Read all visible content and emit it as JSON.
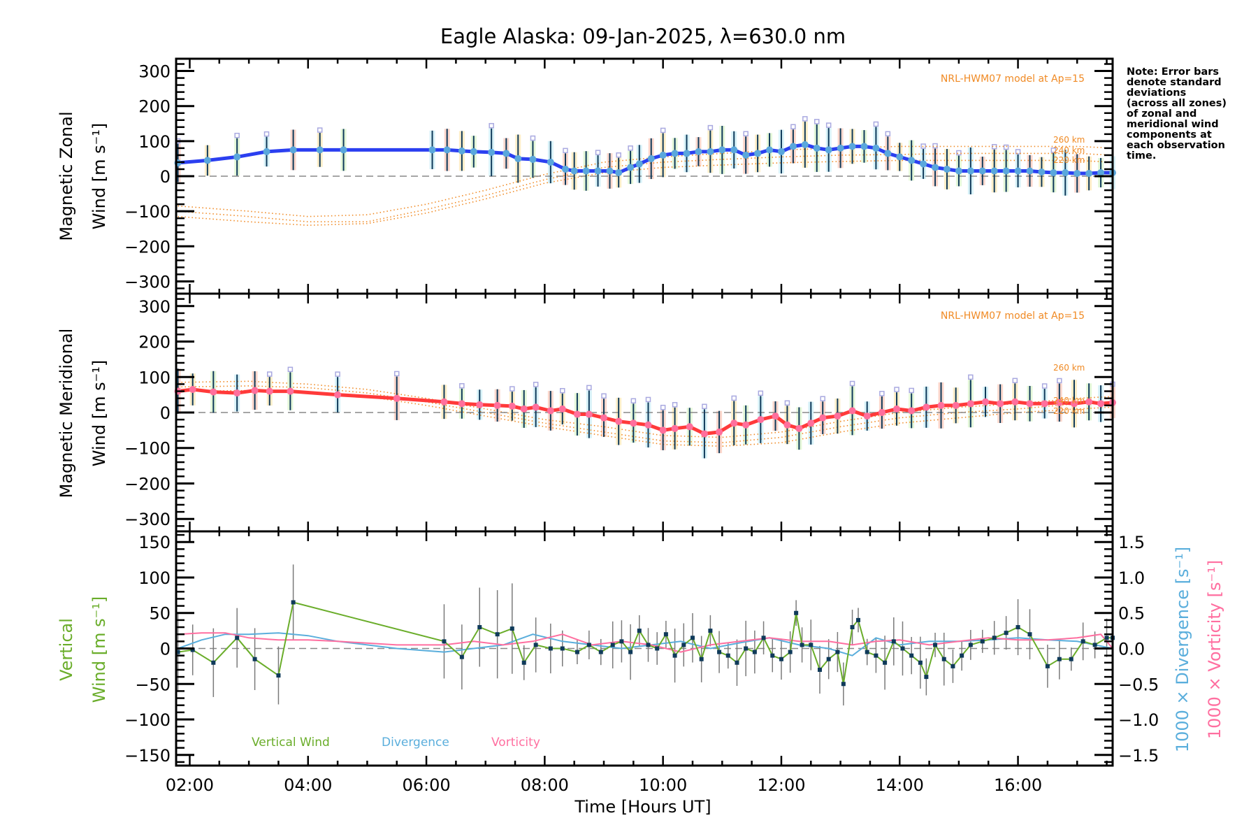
{
  "title": "Eagle Alaska: 09-Jan-2025, λ=630.0 nm",
  "note": [
    "Note: Error bars",
    "denote standard",
    "deviations",
    "(across all zones)",
    "of zonal and",
    "meridional wind",
    "components at",
    "each observation",
    "time."
  ],
  "colors": {
    "zonal": "#2b3ff0",
    "zonal_marker": "#5aa7dc",
    "meridional": "#ff3a3a",
    "meridional_marker": "#ff6f9c",
    "model": "#f08a24",
    "errorbar_dark": "#0f3a5a",
    "vertical": "#6aad2a",
    "divergence": "#5aaedc",
    "vorticity": "#ff6fa0",
    "zero_line": "#888888",
    "zone_points": "#a9a9e0"
  },
  "chart_data": [
    {
      "type": "line",
      "panel": "zonal",
      "ylabel_line1": "Magnetic Zonal",
      "ylabel_line2": "Wind [m s⁻¹]",
      "ylim": [
        -335,
        335
      ],
      "yticks": [
        300,
        200,
        100,
        0,
        -100,
        -200,
        -300
      ],
      "ytick_labels": [
        "300",
        "200",
        "100",
        "0",
        "−100",
        "−200",
        "−300"
      ],
      "model_label": "NRL-HWM07 model at Ap=15",
      "altitude_labels": [
        "260 km",
        "240 km",
        "220 km"
      ],
      "series": [
        {
          "name": "Magnetic Zonal Wind",
          "x": [
            1.8,
            2.3,
            2.8,
            3.3,
            3.75,
            4.2,
            4.6,
            6.1,
            6.35,
            6.6,
            6.8,
            7.1,
            7.35,
            7.55,
            7.8,
            8.1,
            8.35,
            8.5,
            8.7,
            8.9,
            9.1,
            9.25,
            9.45,
            9.6,
            9.8,
            10.0,
            10.2,
            10.4,
            10.6,
            10.8,
            11.0,
            11.2,
            11.4,
            11.6,
            11.8,
            12.0,
            12.2,
            12.4,
            12.6,
            12.8,
            13.0,
            13.2,
            13.4,
            13.6,
            13.8,
            14.0,
            14.2,
            14.4,
            14.6,
            14.8,
            15.0,
            15.2,
            15.4,
            15.6,
            15.8,
            16.0,
            16.2,
            16.4,
            16.6,
            16.8,
            17.0,
            17.2,
            17.4,
            17.6
          ],
          "y": [
            38,
            45,
            55,
            70,
            75,
            75,
            75,
            75,
            75,
            72,
            70,
            68,
            65,
            50,
            48,
            40,
            20,
            15,
            15,
            15,
            15,
            10,
            25,
            35,
            50,
            60,
            65,
            65,
            70,
            70,
            75,
            75,
            60,
            65,
            75,
            70,
            85,
            90,
            80,
            75,
            80,
            85,
            85,
            80,
            65,
            55,
            45,
            35,
            25,
            20,
            15,
            15,
            15,
            15,
            15,
            15,
            15,
            12,
            10,
            10,
            8,
            8,
            10,
            10
          ]
        },
        {
          "name": "NRL-HWM07 260 km",
          "x": [
            1.8,
            3,
            4,
            5,
            6,
            7,
            8,
            9,
            10,
            11,
            12,
            13,
            14,
            15,
            16,
            17,
            17.6
          ],
          "y": [
            -85,
            -100,
            -115,
            -110,
            -80,
            -40,
            5,
            40,
            55,
            65,
            75,
            80,
            85,
            85,
            85,
            85,
            80
          ]
        },
        {
          "name": "NRL-HWM07 240 km",
          "x": [
            1.8,
            3,
            4,
            5,
            6,
            7,
            8,
            9,
            10,
            11,
            12,
            13,
            14,
            15,
            16,
            17,
            17.6
          ],
          "y": [
            -100,
            -115,
            -130,
            -130,
            -95,
            -55,
            -10,
            25,
            40,
            48,
            55,
            60,
            62,
            65,
            65,
            65,
            60
          ]
        },
        {
          "name": "NRL-HWM07 220 km",
          "x": [
            1.8,
            3,
            4,
            5,
            6,
            7,
            8,
            9,
            10,
            11,
            12,
            13,
            14,
            15,
            16,
            17,
            17.6
          ],
          "y": [
            -115,
            -130,
            -140,
            -135,
            -105,
            -65,
            -20,
            10,
            25,
            32,
            38,
            42,
            45,
            45,
            45,
            45,
            40
          ]
        }
      ]
    },
    {
      "type": "line",
      "panel": "meridional",
      "ylabel_line1": "Magnetic Meridional",
      "ylabel_line2": "Wind [m s⁻¹]",
      "ylim": [
        -335,
        335
      ],
      "yticks": [
        300,
        200,
        100,
        0,
        -100,
        -200,
        -300
      ],
      "ytick_labels": [
        "300",
        "200",
        "100",
        "0",
        "−100",
        "−200",
        "−300"
      ],
      "model_label": "NRL-HWM07 model at Ap=15",
      "altitude_labels": [
        "260 km",
        "240 km",
        "220 km"
      ],
      "series": [
        {
          "name": "Magnetic Meridional Wind",
          "x": [
            1.8,
            2.05,
            2.4,
            2.8,
            3.1,
            3.35,
            3.7,
            4.5,
            5.5,
            6.3,
            6.6,
            6.9,
            7.2,
            7.45,
            7.65,
            7.85,
            8.1,
            8.3,
            8.55,
            8.75,
            9.0,
            9.25,
            9.5,
            9.75,
            10.0,
            10.2,
            10.45,
            10.7,
            10.95,
            11.2,
            11.4,
            11.65,
            11.9,
            12.1,
            12.3,
            12.5,
            12.7,
            12.95,
            13.2,
            13.45,
            13.7,
            13.95,
            14.2,
            14.45,
            14.7,
            14.95,
            15.2,
            15.45,
            15.7,
            15.95,
            16.2,
            16.45,
            16.7,
            16.95,
            17.2,
            17.4,
            17.6
          ],
          "y": [
            60,
            65,
            58,
            55,
            62,
            60,
            60,
            50,
            40,
            30,
            25,
            22,
            20,
            18,
            10,
            15,
            5,
            10,
            -5,
            -5,
            -15,
            -25,
            -30,
            -35,
            -50,
            -45,
            -40,
            -60,
            -55,
            -30,
            -35,
            -20,
            -10,
            -35,
            -45,
            -30,
            -15,
            -10,
            5,
            -10,
            0,
            10,
            5,
            15,
            20,
            20,
            25,
            30,
            25,
            30,
            25,
            25,
            28,
            25,
            30,
            25,
            28
          ]
        },
        {
          "name": "NRL-HWM07 260 km",
          "x": [
            1.8,
            3,
            4,
            5,
            6,
            7,
            8,
            9,
            10,
            11,
            12,
            13,
            14,
            15,
            16,
            17,
            17.6
          ],
          "y": [
            85,
            88,
            80,
            65,
            40,
            10,
            -20,
            -40,
            -65,
            -70,
            -55,
            -25,
            0,
            15,
            25,
            40,
            45
          ]
        },
        {
          "name": "NRL-HWM07 240 km",
          "x": [
            1.8,
            3,
            4,
            5,
            6,
            7,
            8,
            9,
            10,
            11,
            12,
            13,
            14,
            15,
            16,
            17,
            17.6
          ],
          "y": [
            72,
            75,
            70,
            55,
            30,
            0,
            -30,
            -55,
            -80,
            -85,
            -70,
            -40,
            -15,
            0,
            10,
            25,
            30
          ]
        },
        {
          "name": "NRL-HWM07 220 km",
          "x": [
            1.8,
            3,
            4,
            5,
            6,
            7,
            8,
            9,
            10,
            11,
            12,
            13,
            14,
            15,
            16,
            17,
            17.6
          ],
          "y": [
            60,
            62,
            58,
            45,
            20,
            -10,
            -40,
            -65,
            -90,
            -95,
            -85,
            -55,
            -30,
            -15,
            0,
            10,
            15
          ]
        }
      ]
    },
    {
      "type": "line",
      "panel": "vertical",
      "ylabel_line1": "Vertical",
      "ylabel_line2": "Wind [m s⁻¹]",
      "ylim": [
        -165,
        165
      ],
      "yticks": [
        150,
        100,
        50,
        0,
        -50,
        -100,
        -150
      ],
      "ytick_labels": [
        "150",
        "100",
        "50",
        "0",
        "−50",
        "−100",
        "−150"
      ],
      "y2label_divergence": "1000 × Divergence [s⁻¹]",
      "y2label_vorticity": "1000 × Vorticity [s⁻¹]",
      "y2lim": [
        -1.65,
        1.65
      ],
      "y2ticks": [
        1.5,
        1.0,
        0.5,
        0.0,
        -0.5,
        -1.0,
        -1.5
      ],
      "y2tick_labels": [
        "1.5",
        "1.0",
        "0.5",
        "0.0",
        "−0.5",
        "−1.0",
        "−1.5"
      ],
      "xlabel": "Time [Hours UT]",
      "xlim": [
        1.77,
        17.6
      ],
      "xticks": [
        2,
        4,
        6,
        8,
        10,
        12,
        14,
        16
      ],
      "xtick_labels": [
        "02:00",
        "04:00",
        "06:00",
        "08:00",
        "10:00",
        "12:00",
        "14:00",
        "16:00"
      ],
      "legend": [
        "Vertical Wind",
        "Divergence",
        "Vorticity"
      ],
      "series": [
        {
          "name": "Vertical Wind",
          "x": [
            1.8,
            2.05,
            2.4,
            2.8,
            3.1,
            3.5,
            3.75,
            6.3,
            6.6,
            6.9,
            7.2,
            7.45,
            7.65,
            7.85,
            8.1,
            8.3,
            8.55,
            8.75,
            8.95,
            9.15,
            9.3,
            9.45,
            9.6,
            9.75,
            9.9,
            10.05,
            10.2,
            10.35,
            10.5,
            10.65,
            10.8,
            10.95,
            11.1,
            11.25,
            11.4,
            11.55,
            11.7,
            11.85,
            12.0,
            12.15,
            12.25,
            12.35,
            12.5,
            12.65,
            12.8,
            12.95,
            13.05,
            13.2,
            13.3,
            13.45,
            13.6,
            13.75,
            13.9,
            14.05,
            14.2,
            14.35,
            14.45,
            14.6,
            14.75,
            14.9,
            15.05,
            15.2,
            15.4,
            15.6,
            15.8,
            16.0,
            16.2,
            16.5,
            16.7,
            16.9,
            17.1,
            17.3,
            17.5,
            17.6
          ],
          "y": [
            -5,
            -2,
            -20,
            15,
            -15,
            -38,
            65,
            10,
            -12,
            30,
            20,
            28,
            -20,
            5,
            0,
            0,
            -5,
            5,
            -5,
            5,
            10,
            -5,
            25,
            5,
            0,
            20,
            -10,
            5,
            15,
            -15,
            25,
            -5,
            -10,
            -20,
            0,
            -5,
            15,
            -10,
            -15,
            -5,
            50,
            5,
            5,
            -30,
            -15,
            -5,
            -50,
            30,
            40,
            -5,
            -10,
            -20,
            10,
            0,
            -10,
            -20,
            -40,
            5,
            -15,
            -25,
            -10,
            5,
            10,
            15,
            22,
            30,
            20,
            -25,
            -15,
            -15,
            10,
            5,
            15,
            15
          ]
        },
        {
          "name": "Divergence",
          "axis": "right",
          "x": [
            1.8,
            2.2,
            2.6,
            3.0,
            3.5,
            4.0,
            4.5,
            5.5,
            6.3,
            6.8,
            7.3,
            7.8,
            8.3,
            8.8,
            9.3,
            9.8,
            10.3,
            10.8,
            11.3,
            11.8,
            12.3,
            12.8,
            13.2,
            13.6,
            14.0,
            14.5,
            15.0,
            15.5,
            16.0,
            16.5,
            17.0,
            17.6
          ],
          "y": [
            0.0,
            0.12,
            0.2,
            0.2,
            0.22,
            0.18,
            0.1,
            0.0,
            -0.05,
            0.0,
            0.05,
            0.2,
            0.1,
            0.05,
            0.0,
            0.05,
            0.1,
            0.0,
            0.08,
            0.15,
            0.05,
            0.0,
            -0.1,
            0.15,
            0.05,
            0.1,
            0.1,
            0.12,
            0.15,
            0.12,
            0.1,
            0.0
          ]
        },
        {
          "name": "Vorticity",
          "axis": "right",
          "x": [
            1.8,
            2.2,
            2.6,
            3.0,
            3.5,
            4.0,
            4.5,
            5.5,
            6.3,
            6.8,
            7.3,
            7.8,
            8.3,
            8.8,
            9.3,
            9.8,
            10.3,
            10.8,
            11.3,
            11.8,
            12.3,
            12.8,
            13.2,
            13.6,
            14.0,
            14.5,
            15.0,
            15.5,
            16.0,
            16.5,
            17.0,
            17.4,
            17.6
          ],
          "y": [
            0.2,
            0.22,
            0.22,
            0.15,
            0.12,
            0.12,
            0.1,
            0.05,
            0.05,
            0.1,
            0.05,
            0.1,
            0.2,
            0.05,
            0.1,
            0.05,
            -0.05,
            0.05,
            0.1,
            0.15,
            0.1,
            0.1,
            0.05,
            0.1,
            0.12,
            0.05,
            0.1,
            0.15,
            0.12,
            0.12,
            0.15,
            0.2,
            0.0
          ]
        }
      ]
    }
  ]
}
